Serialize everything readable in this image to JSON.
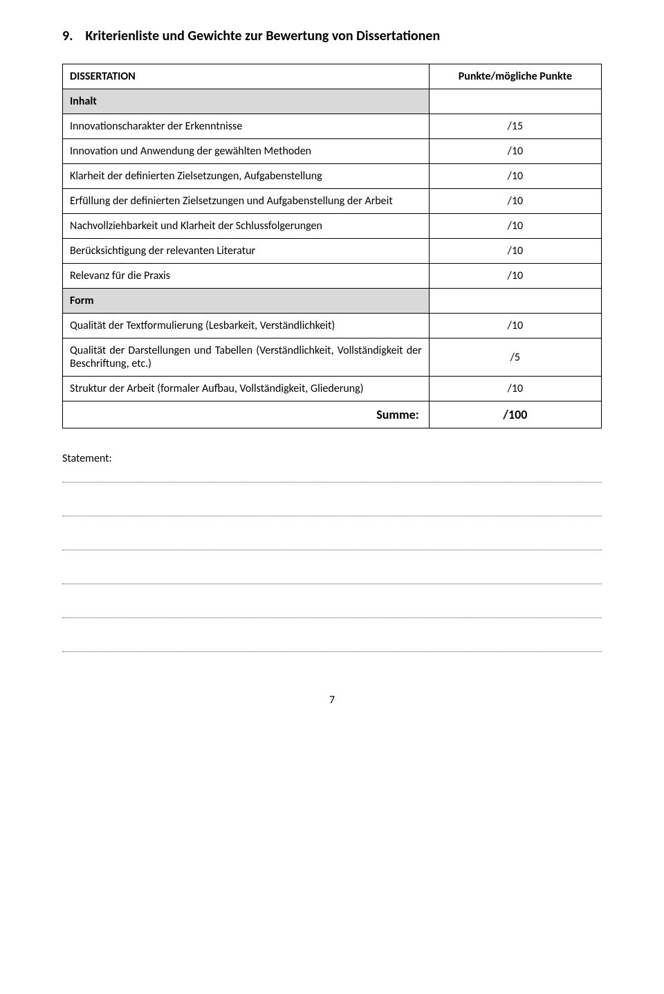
{
  "heading": {
    "number": "9.",
    "text": "Kriterienliste und Gewichte zur Bewertung von Dissertationen"
  },
  "table": {
    "header": {
      "label": "DISSERTATION",
      "points": "Punkte/mögliche Punkte"
    },
    "section_inhalt": "Inhalt",
    "rows_inhalt": [
      {
        "label": "Innovationscharakter der Erkenntnisse",
        "points": "/15"
      },
      {
        "label": "Innovation und Anwendung der gewählten Methoden",
        "points": "/10"
      },
      {
        "label": "Klarheit der definierten Zielsetzungen, Aufgabenstellung",
        "points": "/10"
      },
      {
        "label": "Erfüllung der definierten Zielsetzungen und Aufgabenstellung der Arbeit",
        "points": "/10"
      },
      {
        "label": "Nachvollziehbarkeit und Klarheit der Schlussfolgerungen",
        "points": "/10"
      },
      {
        "label": "Berücksichtigung der relevanten Literatur",
        "points": "/10"
      },
      {
        "label": "Relevanz für die Praxis",
        "points": "/10"
      }
    ],
    "section_form": "Form",
    "rows_form": [
      {
        "label": "Qualität der Textformulierung (Lesbarkeit, Verständlichkeit)",
        "points": "/10"
      },
      {
        "label": "Qualität der Darstellungen und Tabellen (Verständlichkeit, Vollständigkeit der Beschriftung, etc.)",
        "points": "/5",
        "justify": true
      },
      {
        "label": "Struktur der Arbeit (formaler Aufbau, Vollständigkeit, Gliederung)",
        "points": "/10"
      }
    ],
    "sum": {
      "label": "Summe:",
      "points": "/100"
    }
  },
  "statement_label": "Statement:",
  "line_count": 6,
  "page_number": "7",
  "colors": {
    "section_bg": "#d9d9d9",
    "border": "#000000",
    "dotted": "#555555",
    "page_bg": "#ffffff",
    "text": "#000000"
  }
}
